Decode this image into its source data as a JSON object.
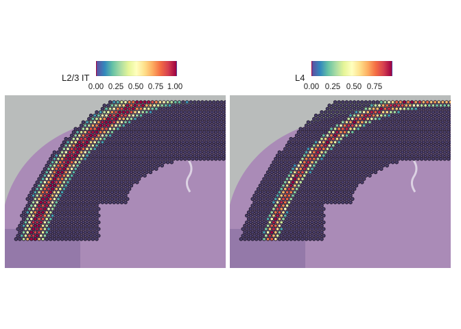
{
  "panels": [
    {
      "title": "L2/3 IT",
      "ticks": [
        "0.00",
        "0.25",
        "0.50",
        "0.75",
        "1.00"
      ],
      "scale_max": 1.0,
      "pattern": "l23"
    },
    {
      "title": "L4",
      "ticks": [
        "0.00",
        "0.25",
        "0.50",
        "0.75"
      ],
      "scale_max": 0.9,
      "pattern": "l4"
    }
  ],
  "colors": {
    "background_slide": "#b9bcbb",
    "tissue": "#a783b6",
    "spot_outline": "#1b1526",
    "spot_low": "#4a3f6b",
    "scale": [
      "#5e4fa2",
      "#3288bd",
      "#66c2a5",
      "#abdda4",
      "#e6f598",
      "#ffffbf",
      "#fee08b",
      "#fdae61",
      "#f46d43",
      "#d53e4f",
      "#9e0142"
    ]
  }
}
